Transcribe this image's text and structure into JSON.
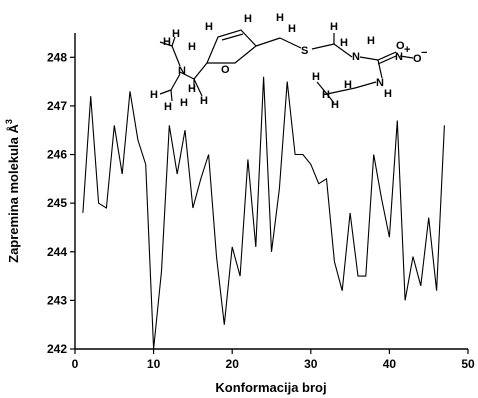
{
  "chart_data": {
    "type": "line",
    "title": "",
    "xlabel": "Konformacija broj",
    "ylabel": "Zapremina molekula Å³",
    "ylabel_base": "Zapremina molekula Å",
    "ylabel_sup": "3",
    "xlim": [
      0,
      50
    ],
    "ylim": [
      242,
      248.5
    ],
    "x_ticks": [
      0,
      10,
      20,
      30,
      40,
      50
    ],
    "y_ticks": [
      242,
      243,
      244,
      245,
      246,
      247,
      248
    ],
    "grid": false,
    "series": [
      {
        "x": [
          1,
          2,
          3,
          4,
          5,
          6,
          7,
          8,
          9,
          10,
          11,
          12,
          13,
          14,
          15,
          16,
          17,
          18,
          19,
          20,
          21,
          22,
          23,
          24,
          25,
          26,
          27,
          28,
          29,
          30,
          31,
          32,
          33,
          34,
          35,
          36,
          37,
          38,
          39,
          40,
          41,
          42,
          43,
          44,
          45,
          46,
          47
        ],
        "values": [
          244.8,
          247.2,
          245.0,
          244.9,
          246.6,
          245.6,
          247.3,
          246.3,
          245.8,
          242.0,
          243.6,
          246.6,
          245.6,
          246.5,
          244.9,
          245.5,
          246.0,
          243.9,
          242.5,
          244.1,
          243.5,
          245.9,
          244.1,
          247.6,
          244.0,
          245.3,
          247.5,
          246.0,
          246.0,
          245.8,
          245.4,
          245.5,
          243.8,
          243.2,
          244.8,
          243.5,
          243.5,
          246.0,
          245.1,
          244.3,
          246.7,
          243.0,
          243.9,
          243.3,
          244.7,
          243.2,
          246.6
        ]
      }
    ],
    "inset_molecule": {
      "atom_labels": {
        "H": "H",
        "N": "N",
        "O": "O",
        "S": "S",
        "N_plus": "+",
        "O_minus": "−"
      }
    }
  }
}
